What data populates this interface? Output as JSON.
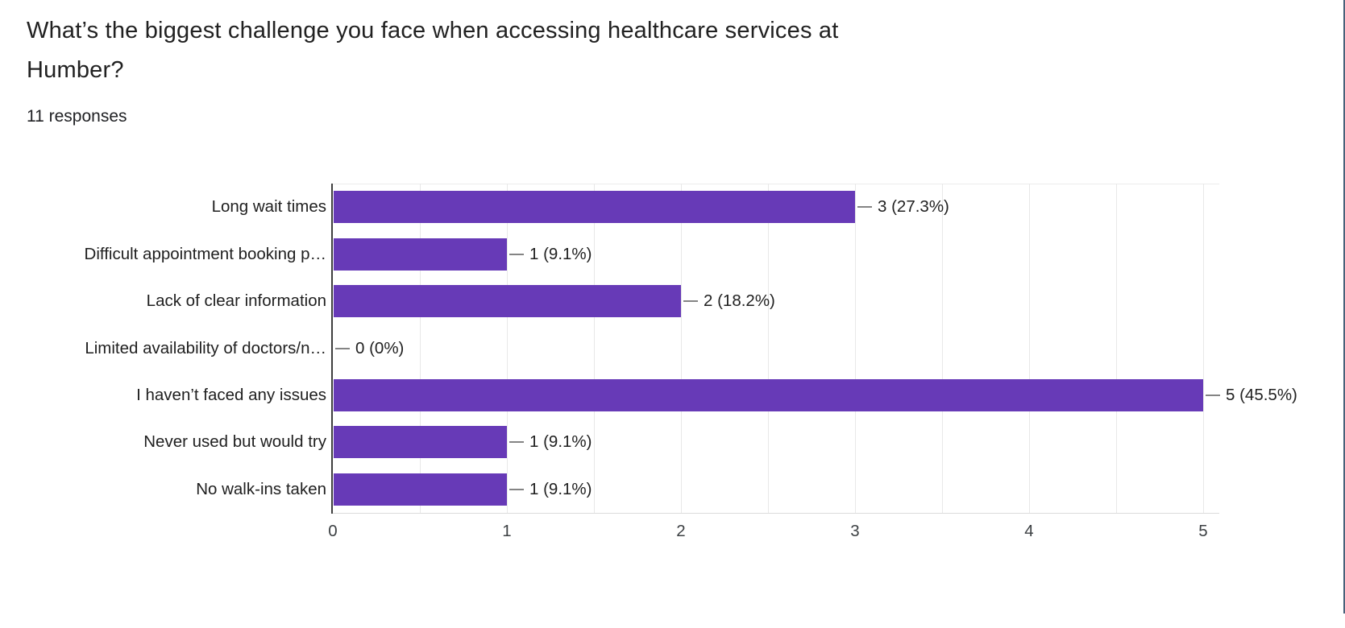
{
  "header": {
    "title_lines": [
      "What’s the biggest challenge you face when accessing healthcare services at",
      "Humber?"
    ],
    "responses_label": "11 responses"
  },
  "chart_data": {
    "type": "bar",
    "orientation": "horizontal",
    "title": "What’s the biggest challenge you face when accessing healthcare services at Humber?",
    "subtitle": "11 responses",
    "total_responses": 11,
    "categories": [
      "Long wait times",
      "Difficult appointment booking p…",
      "Lack of clear information",
      "Limited availability of doctors/n…",
      "I haven’t faced any issues",
      "Never used but would try",
      "No walk-ins taken"
    ],
    "values": [
      3,
      1,
      2,
      0,
      5,
      1,
      1
    ],
    "value_labels": [
      "3 (27.3%)",
      "1 (9.1%)",
      "2 (18.2%)",
      "0 (0%)",
      "5 (45.5%)",
      "1 (9.1%)",
      "1 (9.1%)"
    ],
    "x_ticks": [
      "0",
      "1",
      "2",
      "3",
      "4",
      "5"
    ],
    "xlim": [
      0,
      5.1
    ],
    "grid": true,
    "grid_interval": 0.5,
    "legend": "none",
    "colors": {
      "bar": "#673ab7",
      "gridline": "#e8e8e8",
      "axis": "#3f3f3f",
      "callout": "#848484",
      "title_text": "#212121",
      "tick_text": "#3c4043"
    }
  }
}
